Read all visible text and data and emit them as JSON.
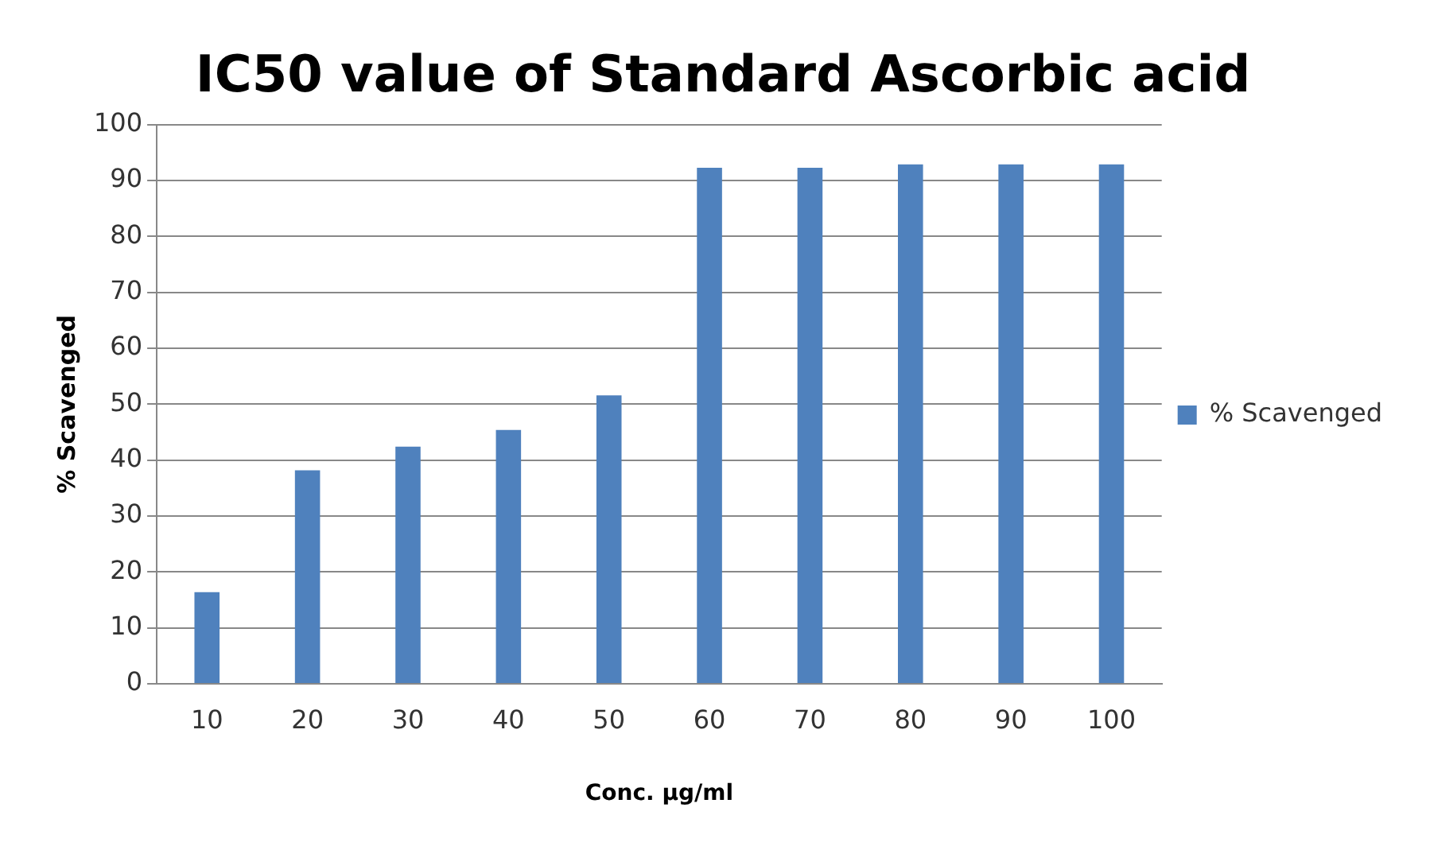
{
  "chart_data": {
    "type": "bar",
    "title": "IC50 value of Standard Ascorbic acid",
    "xlabel": "Conc. µg/ml",
    "ylabel": "% Scavenged",
    "categories": [
      "10",
      "20",
      "30",
      "40",
      "50",
      "60",
      "70",
      "80",
      "90",
      "100"
    ],
    "series": [
      {
        "name": "% Scavenged",
        "color": "#4f81bd",
        "values": [
          16.4,
          38.2,
          42.4,
          45.4,
          51.6,
          92.3,
          92.3,
          92.9,
          92.9,
          92.9
        ]
      }
    ],
    "ylim": [
      0,
      100
    ],
    "yticks": [
      0,
      10,
      20,
      30,
      40,
      50,
      60,
      70,
      80,
      90,
      100
    ],
    "grid": "y",
    "legend": "right"
  }
}
